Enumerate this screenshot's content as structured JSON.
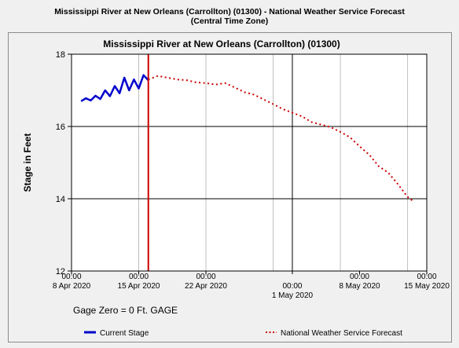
{
  "header": {
    "title_line1": "Mississippi River at New Orleans (Carrollton) (01300) - National Weather Service Forecast",
    "title_line2": "(Central Time Zone)"
  },
  "colors": {
    "observed": "#0000cc",
    "forecast": "#cc0000",
    "now_line": "#cc0000",
    "grid_major": "#000000",
    "grid_minor": "#c0c0c0",
    "plot_bg": "#ffffff"
  },
  "chart_data": {
    "type": "line",
    "title": "Mississippi River at New Orleans (Carrollton) (01300)",
    "ylabel": "Stage in Feet",
    "xlabel": "",
    "ylim": [
      12,
      18
    ],
    "xlim": [
      "2020-04-08T00:00",
      "2020-05-15T00:00"
    ],
    "y_ticks": [
      "12",
      "14",
      "16",
      "18"
    ],
    "x_ticks": [
      {
        "date": "2020-04-08T00:00",
        "time": "00:00",
        "label": "8 Apr 2020"
      },
      {
        "date": "2020-04-15T00:00",
        "time": "00:00",
        "label": "15 Apr 2020"
      },
      {
        "date": "2020-04-22T00:00",
        "time": "00:00",
        "label": "22 Apr 2020"
      },
      {
        "date": "2020-05-01T00:00",
        "time": "00:00",
        "label": "1 May 2020"
      },
      {
        "date": "2020-05-08T00:00",
        "time": "00:00",
        "label": "8 May 2020"
      },
      {
        "date": "2020-05-15T00:00",
        "time": "00:00",
        "label": "15 May 2020"
      }
    ],
    "now_marker": "2020-04-16T00:00",
    "grid": true,
    "legend_position": "bottom",
    "series": [
      {
        "name": "Current Stage",
        "style": "solid",
        "points": [
          [
            "2020-04-09T00:00",
            16.7
          ],
          [
            "2020-04-09T12:00",
            16.78
          ],
          [
            "2020-04-10T00:00",
            16.72
          ],
          [
            "2020-04-10T12:00",
            16.85
          ],
          [
            "2020-04-11T00:00",
            16.76
          ],
          [
            "2020-04-11T12:00",
            17.0
          ],
          [
            "2020-04-12T00:00",
            16.84
          ],
          [
            "2020-04-12T12:00",
            17.12
          ],
          [
            "2020-04-13T00:00",
            16.92
          ],
          [
            "2020-04-13T12:00",
            17.35
          ],
          [
            "2020-04-14T00:00",
            17.0
          ],
          [
            "2020-04-14T12:00",
            17.3
          ],
          [
            "2020-04-15T00:00",
            17.05
          ],
          [
            "2020-04-15T12:00",
            17.42
          ],
          [
            "2020-04-16T00:00",
            17.28
          ]
        ]
      },
      {
        "name": "National Weather Service Forecast",
        "style": "dotted",
        "points": [
          [
            "2020-04-16T00:00",
            17.3
          ],
          [
            "2020-04-17T00:00",
            17.4
          ],
          [
            "2020-04-18T00:00",
            17.35
          ],
          [
            "2020-04-19T00:00",
            17.3
          ],
          [
            "2020-04-20T00:00",
            17.28
          ],
          [
            "2020-04-21T00:00",
            17.22
          ],
          [
            "2020-04-22T00:00",
            17.2
          ],
          [
            "2020-04-23T00:00",
            17.16
          ],
          [
            "2020-04-24T00:00",
            17.2
          ],
          [
            "2020-04-25T00:00",
            17.08
          ],
          [
            "2020-04-26T00:00",
            16.95
          ],
          [
            "2020-04-27T00:00",
            16.88
          ],
          [
            "2020-04-28T00:00",
            16.75
          ],
          [
            "2020-04-29T00:00",
            16.62
          ],
          [
            "2020-04-30T00:00",
            16.48
          ],
          [
            "2020-05-01T00:00",
            16.38
          ],
          [
            "2020-05-02T00:00",
            16.28
          ],
          [
            "2020-05-03T00:00",
            16.12
          ],
          [
            "2020-05-04T00:00",
            16.05
          ],
          [
            "2020-05-05T00:00",
            15.98
          ],
          [
            "2020-05-06T00:00",
            15.85
          ],
          [
            "2020-05-07T00:00",
            15.7
          ],
          [
            "2020-05-08T00:00",
            15.45
          ],
          [
            "2020-05-09T00:00",
            15.22
          ],
          [
            "2020-05-10T00:00",
            14.9
          ],
          [
            "2020-05-11T00:00",
            14.72
          ],
          [
            "2020-05-12T00:00",
            14.4
          ],
          [
            "2020-05-13T00:00",
            14.05
          ],
          [
            "2020-05-13T12:00",
            13.95
          ]
        ]
      }
    ]
  },
  "footer": {
    "gage_zero": "Gage Zero = 0 Ft. GAGE"
  }
}
